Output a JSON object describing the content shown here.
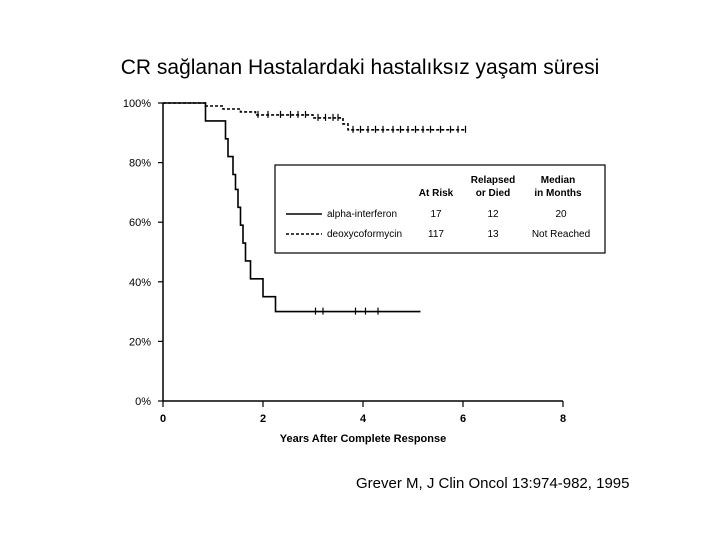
{
  "slide": {
    "title": "CR sağlanan Hastalardaki hastalıksız yaşam süresi",
    "citation": "Grever M, J Clin Oncol 13:974-982, 1995"
  },
  "chart_data": {
    "type": "line",
    "title": "",
    "xlabel": "Years After Complete Response",
    "ylabel": "",
    "xlim": [
      0,
      8
    ],
    "ylim": [
      0,
      100
    ],
    "x_ticks": [
      "0",
      "2",
      "4",
      "6",
      "8"
    ],
    "y_ticks": [
      "0%",
      "20%",
      "40%",
      "60%",
      "80%",
      "100%"
    ],
    "grid": false,
    "legend_placement": "right",
    "legend_headers": {
      "at_risk": "At Risk",
      "relapsed": "Relapsed\nor Died",
      "median": "Median\nin Months"
    },
    "series": [
      {
        "name": "alpha-interferon",
        "style": "solid",
        "at_risk": "17",
        "relapsed": "12",
        "median": "20",
        "x": [
          0,
          0.85,
          0.85,
          1.25,
          1.25,
          1.3,
          1.3,
          1.4,
          1.4,
          1.45,
          1.45,
          1.5,
          1.5,
          1.55,
          1.55,
          1.6,
          1.6,
          1.65,
          1.65,
          1.75,
          1.75,
          2.0,
          2.0,
          2.25,
          2.25,
          5.15
        ],
        "y": [
          100,
          100,
          94,
          94,
          88,
          88,
          82,
          82,
          76,
          76,
          71,
          71,
          65,
          65,
          59,
          59,
          53,
          53,
          47,
          47,
          41,
          41,
          35,
          35,
          30,
          30
        ],
        "censor_x": [
          3.05,
          3.2,
          3.85,
          4.05,
          4.3
        ]
      },
      {
        "name": "deoxycoformycin",
        "style": "dashed",
        "at_risk": "117",
        "relapsed": "13",
        "median": "Not Reached",
        "x": [
          0,
          0.85,
          0.85,
          1.2,
          1.2,
          1.55,
          1.55,
          1.85,
          1.85,
          3.0,
          3.0,
          3.6,
          3.6,
          3.7,
          3.7,
          6.05
        ],
        "y": [
          100,
          100,
          99,
          99,
          98,
          98,
          97,
          97,
          96,
          96,
          95,
          95,
          93,
          93,
          91,
          91
        ],
        "censor_x": [
          1.9,
          2.1,
          2.35,
          2.55,
          2.7,
          2.85,
          3.1,
          3.25,
          3.4,
          3.5,
          3.8,
          3.95,
          4.1,
          4.25,
          4.4,
          4.6,
          4.75,
          4.9,
          5.05,
          5.2,
          5.35,
          5.55,
          5.75,
          5.9,
          6.05
        ]
      }
    ]
  }
}
